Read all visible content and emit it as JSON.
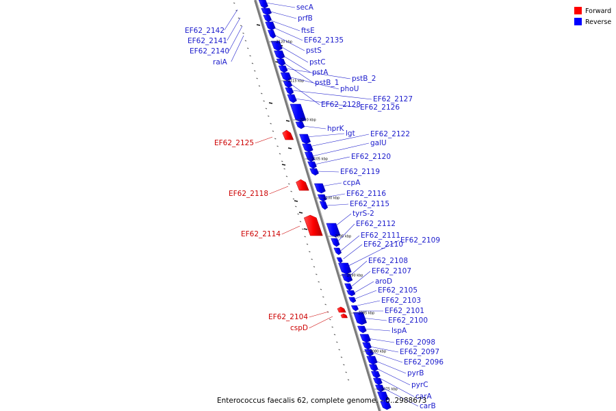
{
  "colors": {
    "forward": "#ff0000",
    "forward_dark": "#b80000",
    "reverse": "#0000ff",
    "reverse_dark": "#0000a8",
    "forward_label": "#cc0000",
    "reverse_label": "#1a1acc",
    "backbone": "#7a7a7a"
  },
  "legend": {
    "forward": "Forward",
    "reverse": "Reverse"
  },
  "caption": "Enterococcus faecalis 62, complete genome. - 0..2988673",
  "ticks": [
    "2075 kbp",
    "2080 kbp",
    "2085 kbp",
    "2090 kbp",
    "2095 kbp",
    "2100 kbp",
    "2105 kbp",
    "2110 kbp",
    "2115 kbp",
    "2120 kbp"
  ],
  "left_labels": [
    "EF62_2142",
    "EF62_2141",
    "EF62_2140",
    "raiA"
  ],
  "forward_genes": [
    "EF62_2125",
    "EF62_2118",
    "EF62_2114",
    "EF62_2104",
    "cspD"
  ],
  "reverse_genes": [
    "secA",
    "prfB",
    "ftsE",
    "EF62_2135",
    "pstS",
    "pstC",
    "pstA",
    "pstB_1",
    "pstB_2",
    "phoU",
    "EF62_2128",
    "EF62_2127",
    "EF62_2126",
    "hprK",
    "lgt",
    "EF62_2122",
    "galU",
    "EF62_2120",
    "EF62_2119",
    "ccpA",
    "EF62_2116",
    "EF62_2115",
    "tyrS-2",
    "EF62_2112",
    "EF62_2111",
    "EF62_2110",
    "EF62_2109",
    "EF62_2108",
    "EF62_2107",
    "aroD",
    "EF62_2105",
    "EF62_2103",
    "EF62_2101",
    "EF62_2100",
    "lspA",
    "EF62_2098",
    "EF62_2097",
    "EF62_2096",
    "pyrB",
    "pyrC",
    "carA",
    "carB"
  ]
}
